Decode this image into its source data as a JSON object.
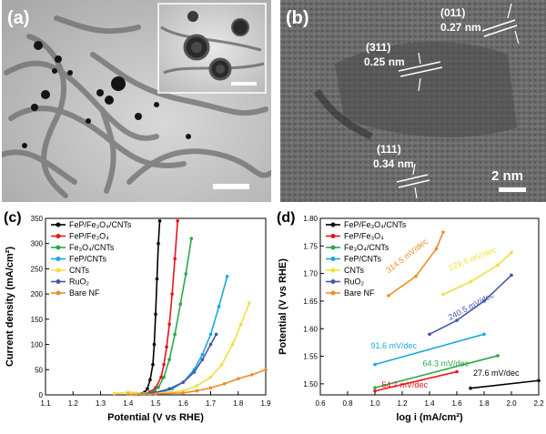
{
  "figure": {
    "panel_a": {
      "label": "(a)"
    },
    "panel_b": {
      "label": "(b)",
      "annotations": [
        {
          "plane": "(011)",
          "spacing": "0.27 nm"
        },
        {
          "plane": "(311)",
          "spacing": "0.25 nm"
        },
        {
          "plane": "(111)",
          "spacing": "0.34 nm"
        }
      ],
      "scale_bar": "2 nm"
    },
    "colors": {
      "FeP/Fe3O4/CNTs": "#000000",
      "FeP/Fe3O4": "#e8141b",
      "Fe3O4/CNTs": "#2aa84a",
      "FeP/CNTs": "#1aa6e0",
      "CNTs": "#f0e040",
      "RuO2": "#4656a8",
      "Bare NF": "#f08c2c"
    }
  },
  "chart_data": [
    {
      "panel": "(c)",
      "type": "line",
      "xlabel": "Potential (V vs RHE)",
      "ylabel": "Current density (mA/cm²)",
      "xlim": [
        1.1,
        1.9
      ],
      "ylim": [
        0,
        350
      ],
      "xticks": [
        "1.1",
        "1.2",
        "1.3",
        "1.4",
        "1.5",
        "1.6",
        "1.7",
        "1.8",
        "1.9"
      ],
      "yticks": [
        "0",
        "50",
        "100",
        "150",
        "200",
        "250",
        "300",
        "350"
      ],
      "legend": [
        "FeP/Fe₃O₄/CNTs",
        "FeP/Fe₃O₄",
        "Fe₃O₄/CNTs",
        "FeP/CNTs",
        "CNTs",
        "RuO₂",
        "Bare NF"
      ],
      "series": [
        {
          "name": "FeP/Fe3O4/CNTs",
          "x": [
            1.44,
            1.46,
            1.47,
            1.48,
            1.49,
            1.495,
            1.5,
            1.505,
            1.51,
            1.515
          ],
          "y": [
            2,
            5,
            12,
            30,
            60,
            100,
            160,
            230,
            300,
            345
          ]
        },
        {
          "name": "FeP/Fe3O4",
          "x": [
            1.46,
            1.48,
            1.5,
            1.52,
            1.53,
            1.54,
            1.55,
            1.56,
            1.57,
            1.58
          ],
          "y": [
            2,
            6,
            14,
            35,
            60,
            95,
            140,
            200,
            270,
            345
          ]
        },
        {
          "name": "Fe3O4/CNTs",
          "x": [
            1.46,
            1.49,
            1.51,
            1.53,
            1.55,
            1.57,
            1.59,
            1.61,
            1.63
          ],
          "y": [
            2,
            6,
            15,
            35,
            70,
            120,
            180,
            240,
            310
          ]
        },
        {
          "name": "FeP/CNTs",
          "x": [
            1.48,
            1.52,
            1.56,
            1.6,
            1.64,
            1.67,
            1.7,
            1.73,
            1.76
          ],
          "y": [
            2,
            5,
            12,
            25,
            50,
            80,
            120,
            175,
            235
          ]
        },
        {
          "name": "CNTs",
          "x": [
            1.35,
            1.4,
            1.5,
            1.6,
            1.65,
            1.7,
            1.74,
            1.78,
            1.81,
            1.84
          ],
          "y": [
            3,
            5,
            3,
            8,
            18,
            35,
            60,
            100,
            140,
            182
          ]
        },
        {
          "name": "RuO2",
          "x": [
            1.45,
            1.5,
            1.55,
            1.6,
            1.64,
            1.67,
            1.7,
            1.72
          ],
          "y": [
            2,
            5,
            12,
            25,
            45,
            70,
            100,
            120
          ]
        },
        {
          "name": "Bare NF",
          "x": [
            1.4,
            1.5,
            1.6,
            1.65,
            1.7,
            1.75,
            1.8,
            1.85,
            1.9
          ],
          "y": [
            1,
            2,
            4,
            8,
            14,
            22,
            32,
            40,
            50
          ]
        }
      ]
    },
    {
      "panel": "(d)",
      "type": "scatter",
      "xlabel": "log i (mA/cm²)",
      "ylabel": "Potential (V vs RHE)",
      "xlim": [
        0.6,
        2.2
      ],
      "ylim": [
        1.48,
        1.8
      ],
      "xticks": [
        "0.6",
        "0.8",
        "1.0",
        "1.2",
        "1.4",
        "1.6",
        "1.8",
        "2.0",
        "2.2"
      ],
      "yticks": [
        "1.50",
        "1.55",
        "1.60",
        "1.65",
        "1.70",
        "1.75",
        "1.80"
      ],
      "legend": [
        "FeP/Fe₃O₄/CNTs",
        "FeP/Fe₃O₄",
        "Fe₃O₄/CNTs",
        "FeP/CNTs",
        "CNTs",
        "RuO₂",
        "Bare NF"
      ],
      "tafel_labels": [
        "27.6 mV/dec",
        "54.7 mV/dec",
        "64.3 mV/dec",
        "91.6 mV/dec",
        "229.5 mV/dec",
        "240.5 mV/dec",
        "314.5 mV/dec"
      ],
      "series": [
        {
          "name": "FeP/Fe3O4/CNTs",
          "x": [
            1.7,
            2.2
          ],
          "y": [
            1.492,
            1.506
          ]
        },
        {
          "name": "FeP/Fe3O4",
          "x": [
            1.0,
            1.6
          ],
          "y": [
            1.487,
            1.522
          ]
        },
        {
          "name": "Fe3O4/CNTs",
          "x": [
            1.0,
            1.9
          ],
          "y": [
            1.493,
            1.551
          ]
        },
        {
          "name": "FeP/CNTs",
          "x": [
            1.0,
            1.8
          ],
          "y": [
            1.535,
            1.59
          ]
        },
        {
          "name": "CNTs",
          "x": [
            1.5,
            1.7,
            1.9,
            2.0
          ],
          "y": [
            1.662,
            1.685,
            1.715,
            1.738
          ]
        },
        {
          "name": "RuO2",
          "x": [
            1.4,
            1.6,
            1.8,
            2.0
          ],
          "y": [
            1.59,
            1.615,
            1.65,
            1.697
          ]
        },
        {
          "name": "Bare NF",
          "x": [
            1.1,
            1.3,
            1.45,
            1.5
          ],
          "y": [
            1.66,
            1.695,
            1.745,
            1.775
          ]
        }
      ]
    }
  ]
}
